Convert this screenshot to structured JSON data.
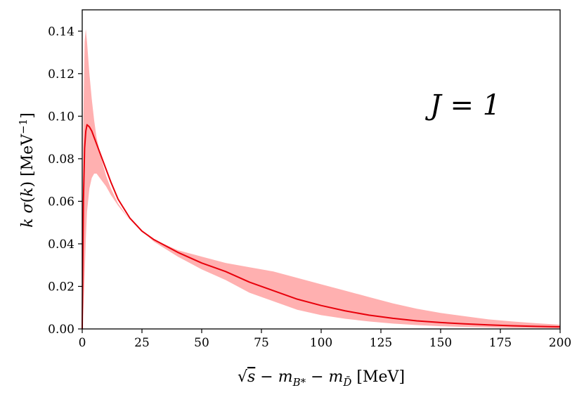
{
  "chart_data": {
    "type": "line",
    "title": "",
    "xlabel": "√s − m_{B*} − m_{D̄} [MeV]",
    "ylabel": "k σ(k) [MeV⁻¹]",
    "xlim": [
      0,
      200
    ],
    "ylim": [
      0,
      0.15
    ],
    "xticks": [
      0,
      25,
      50,
      75,
      100,
      125,
      150,
      175,
      200
    ],
    "yticks": [
      0.0,
      0.02,
      0.04,
      0.06,
      0.08,
      0.1,
      0.12,
      0.14
    ],
    "xtick_labels": [
      "0",
      "25",
      "50",
      "75",
      "100",
      "125",
      "150",
      "175",
      "200"
    ],
    "ytick_labels": [
      "0.00",
      "0.02",
      "0.04",
      "0.06",
      "0.08",
      "0.10",
      "0.12",
      "0.14"
    ],
    "grid": false,
    "legend": "none",
    "annotation": "J = 1",
    "series": [
      {
        "color": "#e8000b",
        "x": [
          0,
          0.5,
          1,
          1.5,
          2,
          3,
          4,
          5,
          6,
          8,
          10,
          12,
          15,
          20,
          25,
          30,
          40,
          50,
          60,
          70,
          80,
          90,
          100,
          110,
          120,
          130,
          140,
          150,
          160,
          170,
          180,
          190,
          200
        ],
        "y": [
          0,
          0.06,
          0.085,
          0.093,
          0.096,
          0.095,
          0.093,
          0.09,
          0.087,
          0.081,
          0.075,
          0.069,
          0.061,
          0.052,
          0.046,
          0.042,
          0.036,
          0.031,
          0.027,
          0.022,
          0.018,
          0.014,
          0.011,
          0.0085,
          0.0065,
          0.005,
          0.0038,
          0.003,
          0.0024,
          0.0019,
          0.0015,
          0.0012,
          0.001
        ]
      }
    ],
    "band": {
      "color": "#ffb0b0",
      "x": [
        0,
        0.5,
        1,
        1.5,
        2,
        3,
        4,
        5,
        6,
        8,
        10,
        12,
        15,
        20,
        25,
        30,
        40,
        50,
        60,
        70,
        80,
        90,
        100,
        110,
        120,
        130,
        140,
        150,
        160,
        170,
        180,
        190,
        200
      ],
      "upper": [
        0,
        0.1,
        0.135,
        0.141,
        0.135,
        0.12,
        0.108,
        0.098,
        0.09,
        0.08,
        0.072,
        0.066,
        0.059,
        0.051,
        0.046,
        0.042,
        0.037,
        0.034,
        0.031,
        0.029,
        0.027,
        0.024,
        0.021,
        0.018,
        0.015,
        0.012,
        0.0095,
        0.0075,
        0.006,
        0.0045,
        0.0035,
        0.0027,
        0.002
      ],
      "lower": [
        0,
        0.01,
        0.025,
        0.042,
        0.055,
        0.066,
        0.071,
        0.073,
        0.073,
        0.07,
        0.067,
        0.063,
        0.058,
        0.051,
        0.046,
        0.041,
        0.034,
        0.028,
        0.023,
        0.017,
        0.013,
        0.009,
        0.0065,
        0.0048,
        0.0035,
        0.0025,
        0.0018,
        0.0013,
        0.0009,
        0.0007,
        0.0005,
        0.0004,
        0.0003
      ]
    }
  }
}
